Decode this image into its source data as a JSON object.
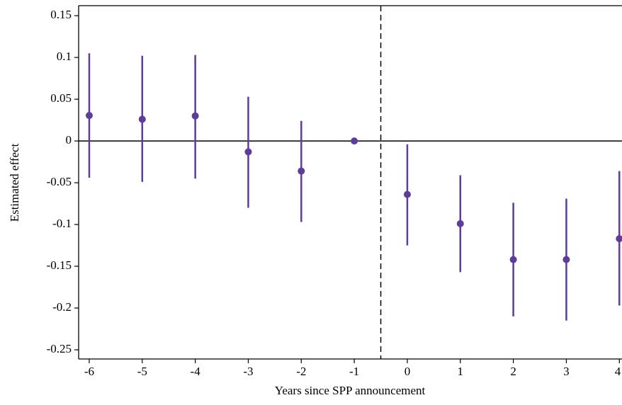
{
  "chart_data": {
    "type": "errorbar",
    "xlabel": "Years since SPP announcement",
    "ylabel": "Estimated effect",
    "x": [
      -6,
      -5,
      -4,
      -3,
      -2,
      -1,
      0,
      1,
      2,
      3,
      4
    ],
    "series": [
      {
        "color": "#5e3c99",
        "values": [
          0.0305,
          0.026,
          0.03,
          -0.013,
          -0.036,
          0,
          -0.064,
          -0.099,
          -0.142,
          -0.142,
          -0.117
        ],
        "ci_low": [
          -0.044,
          -0.049,
          -0.045,
          -0.08,
          -0.097,
          null,
          -0.125,
          -0.157,
          -0.21,
          -0.215,
          -0.197
        ],
        "ci_high": [
          0.105,
          0.102,
          0.103,
          0.053,
          0.024,
          null,
          -0.004,
          -0.041,
          -0.074,
          -0.069,
          -0.036
        ]
      }
    ],
    "xlim": [
      -6.2,
      4.05
    ],
    "ylim": [
      -0.261,
      0.162
    ],
    "xticks": [
      -6,
      -5,
      -4,
      -3,
      -2,
      -1,
      0,
      1,
      2,
      3,
      4
    ],
    "yticks": [
      0.15,
      0.1,
      0.05,
      0,
      -0.05,
      -0.1,
      -0.15,
      -0.2,
      -0.25
    ],
    "reference_y": 0,
    "reference_x": -0.5
  }
}
